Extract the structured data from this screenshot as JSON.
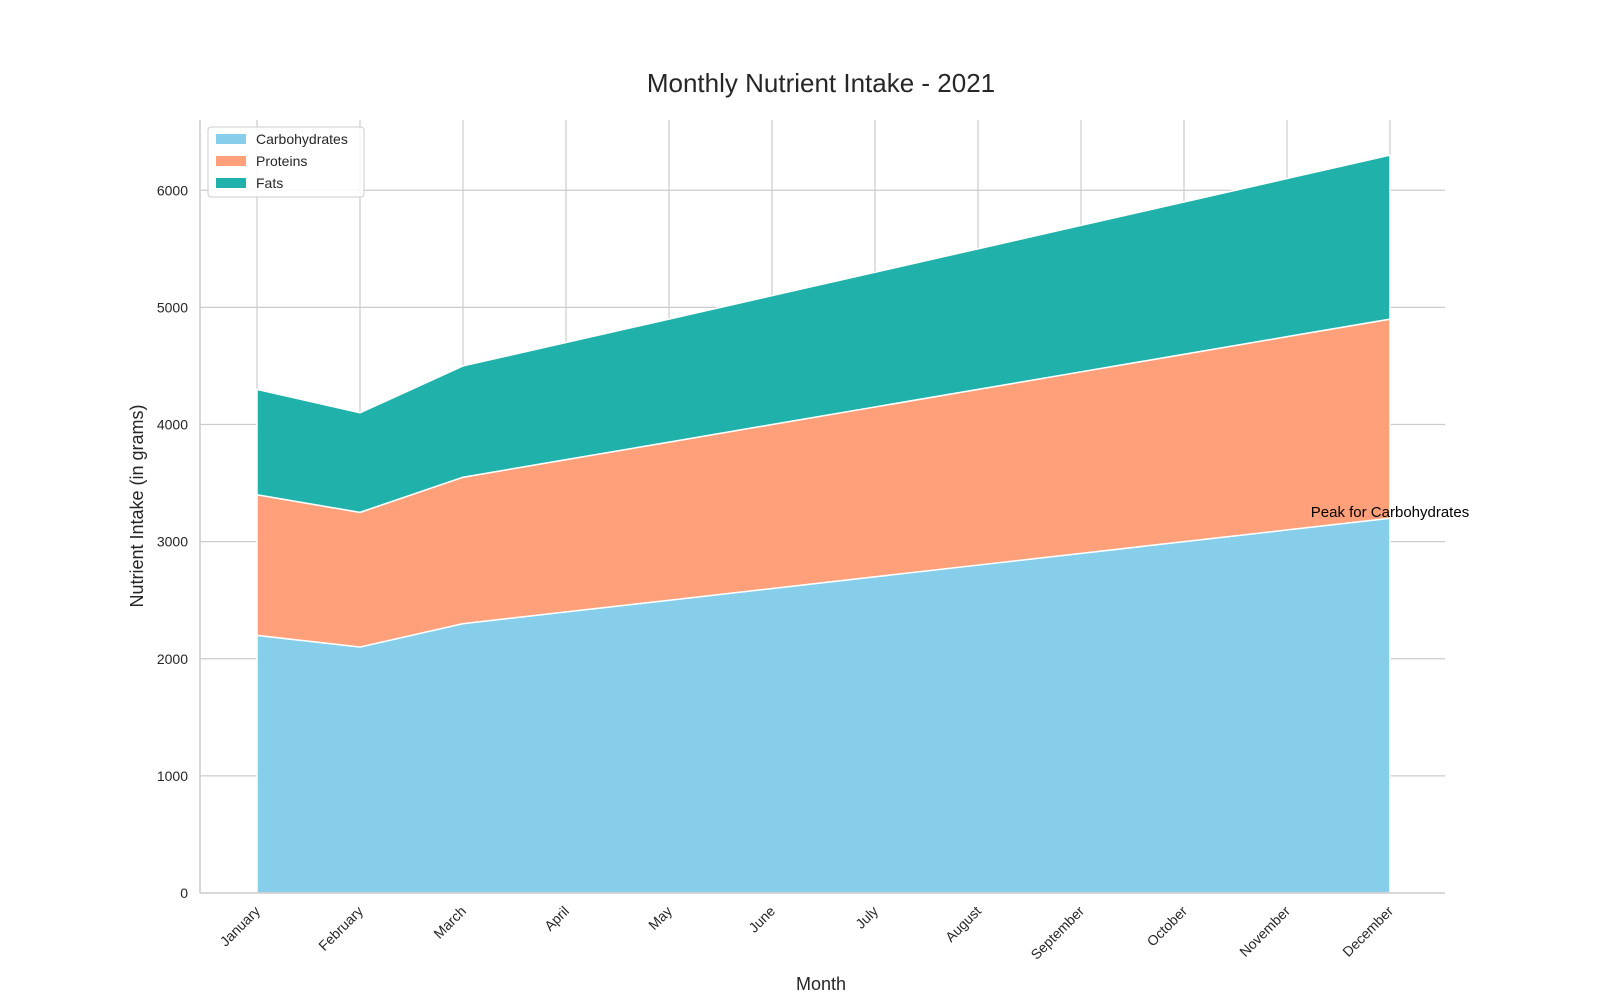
{
  "chart_data": {
    "type": "area",
    "stacked": true,
    "title": "Monthly Nutrient Intake - 2021",
    "xlabel": "Month",
    "ylabel": "Nutrient Intake (in grams)",
    "categories": [
      "January",
      "February",
      "March",
      "April",
      "May",
      "June",
      "July",
      "August",
      "September",
      "October",
      "November",
      "December"
    ],
    "series": [
      {
        "name": "Carbohydrates",
        "color": "#87ceeb",
        "values": [
          2200,
          2100,
          2300,
          2400,
          2500,
          2600,
          2700,
          2800,
          2900,
          3000,
          3100,
          3200
        ]
      },
      {
        "name": "Proteins",
        "color": "#ffa07a",
        "values": [
          1200,
          1150,
          1250,
          1300,
          1350,
          1400,
          1450,
          1500,
          1550,
          1600,
          1650,
          1700
        ]
      },
      {
        "name": "Fats",
        "color": "#20b2aa",
        "values": [
          900,
          850,
          950,
          1000,
          1050,
          1100,
          1150,
          1200,
          1250,
          1300,
          1350,
          1400
        ]
      }
    ],
    "ylim": [
      0,
      6600
    ],
    "yticks": [
      0,
      1000,
      2000,
      3000,
      4000,
      5000,
      6000
    ],
    "grid": true,
    "legend_position": "top-left",
    "annotation": {
      "text": "Peak for Carbohydrates",
      "category": "December",
      "value": 3200
    }
  }
}
